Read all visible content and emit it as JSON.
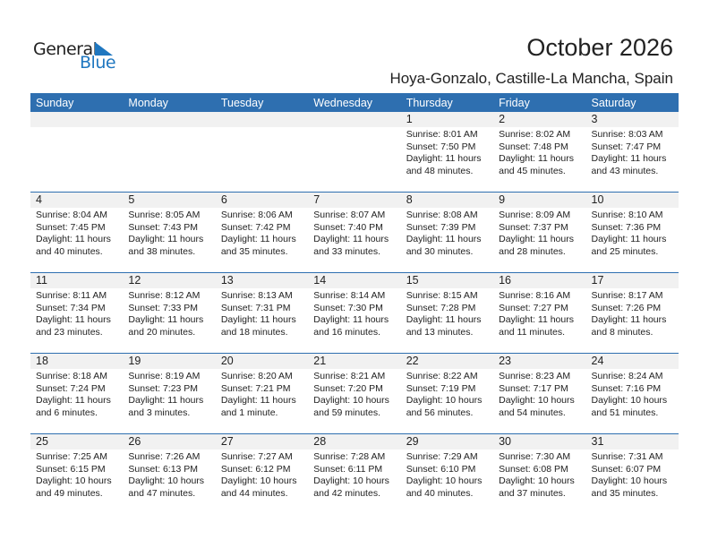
{
  "logo": {
    "general": "General",
    "blue": "Blue"
  },
  "title": "October 2026",
  "location": "Hoya-Gonzalo, Castille-La Mancha, Spain",
  "days": [
    "Sunday",
    "Monday",
    "Tuesday",
    "Wednesday",
    "Thursday",
    "Friday",
    "Saturday"
  ],
  "weeks": [
    [
      null,
      null,
      null,
      null,
      {
        "d": "1",
        "rise": "Sunrise: 8:01 AM",
        "set": "Sunset: 7:50 PM",
        "dl1": "Daylight: 11 hours",
        "dl2": "and 48 minutes."
      },
      {
        "d": "2",
        "rise": "Sunrise: 8:02 AM",
        "set": "Sunset: 7:48 PM",
        "dl1": "Daylight: 11 hours",
        "dl2": "and 45 minutes."
      },
      {
        "d": "3",
        "rise": "Sunrise: 8:03 AM",
        "set": "Sunset: 7:47 PM",
        "dl1": "Daylight: 11 hours",
        "dl2": "and 43 minutes."
      }
    ],
    [
      {
        "d": "4",
        "rise": "Sunrise: 8:04 AM",
        "set": "Sunset: 7:45 PM",
        "dl1": "Daylight: 11 hours",
        "dl2": "and 40 minutes."
      },
      {
        "d": "5",
        "rise": "Sunrise: 8:05 AM",
        "set": "Sunset: 7:43 PM",
        "dl1": "Daylight: 11 hours",
        "dl2": "and 38 minutes."
      },
      {
        "d": "6",
        "rise": "Sunrise: 8:06 AM",
        "set": "Sunset: 7:42 PM",
        "dl1": "Daylight: 11 hours",
        "dl2": "and 35 minutes."
      },
      {
        "d": "7",
        "rise": "Sunrise: 8:07 AM",
        "set": "Sunset: 7:40 PM",
        "dl1": "Daylight: 11 hours",
        "dl2": "and 33 minutes."
      },
      {
        "d": "8",
        "rise": "Sunrise: 8:08 AM",
        "set": "Sunset: 7:39 PM",
        "dl1": "Daylight: 11 hours",
        "dl2": "and 30 minutes."
      },
      {
        "d": "9",
        "rise": "Sunrise: 8:09 AM",
        "set": "Sunset: 7:37 PM",
        "dl1": "Daylight: 11 hours",
        "dl2": "and 28 minutes."
      },
      {
        "d": "10",
        "rise": "Sunrise: 8:10 AM",
        "set": "Sunset: 7:36 PM",
        "dl1": "Daylight: 11 hours",
        "dl2": "and 25 minutes."
      }
    ],
    [
      {
        "d": "11",
        "rise": "Sunrise: 8:11 AM",
        "set": "Sunset: 7:34 PM",
        "dl1": "Daylight: 11 hours",
        "dl2": "and 23 minutes."
      },
      {
        "d": "12",
        "rise": "Sunrise: 8:12 AM",
        "set": "Sunset: 7:33 PM",
        "dl1": "Daylight: 11 hours",
        "dl2": "and 20 minutes."
      },
      {
        "d": "13",
        "rise": "Sunrise: 8:13 AM",
        "set": "Sunset: 7:31 PM",
        "dl1": "Daylight: 11 hours",
        "dl2": "and 18 minutes."
      },
      {
        "d": "14",
        "rise": "Sunrise: 8:14 AM",
        "set": "Sunset: 7:30 PM",
        "dl1": "Daylight: 11 hours",
        "dl2": "and 16 minutes."
      },
      {
        "d": "15",
        "rise": "Sunrise: 8:15 AM",
        "set": "Sunset: 7:28 PM",
        "dl1": "Daylight: 11 hours",
        "dl2": "and 13 minutes."
      },
      {
        "d": "16",
        "rise": "Sunrise: 8:16 AM",
        "set": "Sunset: 7:27 PM",
        "dl1": "Daylight: 11 hours",
        "dl2": "and 11 minutes."
      },
      {
        "d": "17",
        "rise": "Sunrise: 8:17 AM",
        "set": "Sunset: 7:26 PM",
        "dl1": "Daylight: 11 hours",
        "dl2": "and 8 minutes."
      }
    ],
    [
      {
        "d": "18",
        "rise": "Sunrise: 8:18 AM",
        "set": "Sunset: 7:24 PM",
        "dl1": "Daylight: 11 hours",
        "dl2": "and 6 minutes."
      },
      {
        "d": "19",
        "rise": "Sunrise: 8:19 AM",
        "set": "Sunset: 7:23 PM",
        "dl1": "Daylight: 11 hours",
        "dl2": "and 3 minutes."
      },
      {
        "d": "20",
        "rise": "Sunrise: 8:20 AM",
        "set": "Sunset: 7:21 PM",
        "dl1": "Daylight: 11 hours",
        "dl2": "and 1 minute."
      },
      {
        "d": "21",
        "rise": "Sunrise: 8:21 AM",
        "set": "Sunset: 7:20 PM",
        "dl1": "Daylight: 10 hours",
        "dl2": "and 59 minutes."
      },
      {
        "d": "22",
        "rise": "Sunrise: 8:22 AM",
        "set": "Sunset: 7:19 PM",
        "dl1": "Daylight: 10 hours",
        "dl2": "and 56 minutes."
      },
      {
        "d": "23",
        "rise": "Sunrise: 8:23 AM",
        "set": "Sunset: 7:17 PM",
        "dl1": "Daylight: 10 hours",
        "dl2": "and 54 minutes."
      },
      {
        "d": "24",
        "rise": "Sunrise: 8:24 AM",
        "set": "Sunset: 7:16 PM",
        "dl1": "Daylight: 10 hours",
        "dl2": "and 51 minutes."
      }
    ],
    [
      {
        "d": "25",
        "rise": "Sunrise: 7:25 AM",
        "set": "Sunset: 6:15 PM",
        "dl1": "Daylight: 10 hours",
        "dl2": "and 49 minutes."
      },
      {
        "d": "26",
        "rise": "Sunrise: 7:26 AM",
        "set": "Sunset: 6:13 PM",
        "dl1": "Daylight: 10 hours",
        "dl2": "and 47 minutes."
      },
      {
        "d": "27",
        "rise": "Sunrise: 7:27 AM",
        "set": "Sunset: 6:12 PM",
        "dl1": "Daylight: 10 hours",
        "dl2": "and 44 minutes."
      },
      {
        "d": "28",
        "rise": "Sunrise: 7:28 AM",
        "set": "Sunset: 6:11 PM",
        "dl1": "Daylight: 10 hours",
        "dl2": "and 42 minutes."
      },
      {
        "d": "29",
        "rise": "Sunrise: 7:29 AM",
        "set": "Sunset: 6:10 PM",
        "dl1": "Daylight: 10 hours",
        "dl2": "and 40 minutes."
      },
      {
        "d": "30",
        "rise": "Sunrise: 7:30 AM",
        "set": "Sunset: 6:08 PM",
        "dl1": "Daylight: 10 hours",
        "dl2": "and 37 minutes."
      },
      {
        "d": "31",
        "rise": "Sunrise: 7:31 AM",
        "set": "Sunset: 6:07 PM",
        "dl1": "Daylight: 10 hours",
        "dl2": "and 35 minutes."
      }
    ]
  ]
}
